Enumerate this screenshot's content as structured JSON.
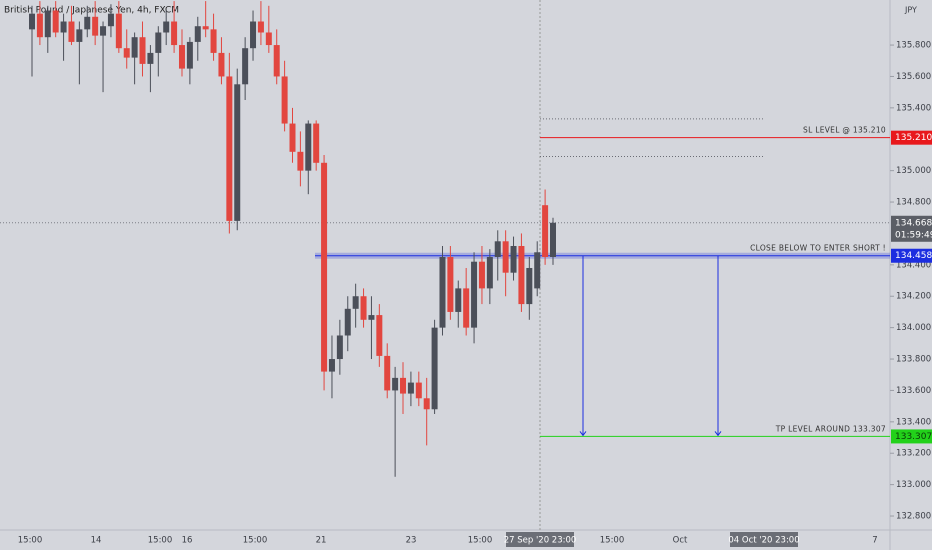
{
  "chart_data": {
    "type": "candlestick",
    "title": "British Pound / Japanese Yen, 4h, FXCM",
    "currency": "JPY",
    "up_color": "#4b4f59",
    "down_color": "#e2463f",
    "ylim": [
      132.711,
      136.087
    ],
    "yticks": [
      {
        "value": 132.8,
        "label": "132.800"
      },
      {
        "value": 133.0,
        "label": "133.000"
      },
      {
        "value": 133.2,
        "label": "133.200"
      },
      {
        "value": 133.4,
        "label": "133.400"
      },
      {
        "value": 133.6,
        "label": "133.600"
      },
      {
        "value": 133.8,
        "label": "133.800"
      },
      {
        "value": 134.0,
        "label": "134.000"
      },
      {
        "value": 134.2,
        "label": "134.200"
      },
      {
        "value": 134.4,
        "label": "134.400"
      },
      {
        "value": 134.8,
        "label": "134.800"
      },
      {
        "value": 135.0,
        "label": "135.000"
      },
      {
        "value": 135.4,
        "label": "135.400"
      },
      {
        "value": 135.6,
        "label": "135.600"
      },
      {
        "value": 135.8,
        "label": "135.800"
      }
    ],
    "xlabels": [
      "15:00",
      "14",
      "15:00",
      "16",
      "15:00",
      "21",
      "23",
      "15:00",
      "27 Sep '20 23:00",
      "15:00",
      "Oct",
      "04 Oct '20 23:00",
      "7"
    ],
    "ohlc": [
      [
        135.9,
        136.05,
        135.6,
        136.0
      ],
      [
        136.0,
        136.08,
        135.8,
        135.85
      ],
      [
        135.85,
        136.05,
        135.75,
        136.02
      ],
      [
        136.02,
        136.08,
        135.85,
        135.88
      ],
      [
        135.88,
        136.0,
        135.7,
        135.95
      ],
      [
        135.95,
        136.05,
        135.8,
        135.82
      ],
      [
        135.82,
        135.95,
        135.55,
        135.9
      ],
      [
        135.9,
        136.05,
        135.85,
        135.98
      ],
      [
        135.98,
        136.08,
        135.8,
        135.86
      ],
      [
        135.86,
        135.95,
        135.5,
        135.92
      ],
      [
        135.92,
        136.06,
        135.85,
        136.0
      ],
      [
        136.0,
        136.08,
        135.75,
        135.78
      ],
      [
        135.78,
        135.9,
        135.65,
        135.72
      ],
      [
        135.72,
        135.88,
        135.55,
        135.85
      ],
      [
        135.85,
        135.95,
        135.6,
        135.68
      ],
      [
        135.68,
        135.8,
        135.5,
        135.75
      ],
      [
        135.75,
        135.92,
        135.6,
        135.88
      ],
      [
        135.88,
        136.02,
        135.8,
        135.95
      ],
      [
        135.95,
        136.08,
        135.75,
        135.8
      ],
      [
        135.8,
        135.9,
        135.6,
        135.65
      ],
      [
        135.65,
        135.85,
        135.55,
        135.82
      ],
      [
        135.82,
        135.98,
        135.7,
        135.92
      ],
      [
        135.92,
        136.08,
        135.85,
        135.9
      ],
      [
        135.9,
        136.0,
        135.7,
        135.75
      ],
      [
        135.75,
        135.85,
        135.55,
        135.6
      ],
      [
        135.6,
        135.75,
        134.6,
        134.68
      ],
      [
        134.68,
        135.65,
        134.62,
        135.55
      ],
      [
        135.55,
        135.85,
        135.45,
        135.78
      ],
      [
        135.78,
        136.02,
        135.7,
        135.95
      ],
      [
        135.95,
        136.08,
        135.8,
        135.88
      ],
      [
        135.88,
        136.05,
        135.75,
        135.8
      ],
      [
        135.8,
        135.9,
        135.55,
        135.6
      ],
      [
        135.6,
        135.7,
        135.25,
        135.3
      ],
      [
        135.3,
        135.4,
        135.05,
        135.12
      ],
      [
        135.12,
        135.25,
        134.9,
        135.0
      ],
      [
        135.0,
        135.32,
        134.85,
        135.3
      ],
      [
        135.3,
        135.32,
        135.0,
        135.05
      ],
      [
        135.05,
        135.1,
        133.6,
        133.72
      ],
      [
        133.72,
        133.95,
        133.55,
        133.8
      ],
      [
        133.8,
        134.05,
        133.7,
        133.95
      ],
      [
        133.95,
        134.2,
        133.85,
        134.12
      ],
      [
        134.12,
        134.28,
        134.0,
        134.2
      ],
      [
        134.2,
        134.25,
        134.0,
        134.05
      ],
      [
        134.05,
        134.2,
        133.8,
        134.08
      ],
      [
        134.08,
        134.15,
        133.75,
        133.82
      ],
      [
        133.82,
        133.9,
        133.55,
        133.6
      ],
      [
        133.6,
        133.75,
        133.05,
        133.68
      ],
      [
        133.68,
        133.78,
        133.45,
        133.58
      ],
      [
        133.58,
        133.72,
        133.5,
        133.65
      ],
      [
        133.65,
        133.72,
        133.5,
        133.55
      ],
      [
        133.55,
        133.68,
        133.25,
        133.48
      ],
      [
        133.48,
        134.05,
        133.45,
        134.0
      ],
      [
        134.0,
        134.52,
        133.95,
        134.45
      ],
      [
        134.45,
        134.52,
        134.05,
        134.1
      ],
      [
        134.1,
        134.3,
        134.0,
        134.25
      ],
      [
        134.25,
        134.38,
        133.95,
        134.0
      ],
      [
        134.0,
        134.48,
        133.9,
        134.42
      ],
      [
        134.42,
        134.52,
        134.15,
        134.25
      ],
      [
        134.25,
        134.5,
        134.15,
        134.45
      ],
      [
        134.45,
        134.62,
        134.3,
        134.55
      ],
      [
        134.55,
        134.62,
        134.2,
        134.35
      ],
      [
        134.35,
        134.58,
        134.3,
        134.52
      ],
      [
        134.52,
        134.6,
        134.1,
        134.15
      ],
      [
        134.15,
        134.45,
        134.05,
        134.38
      ],
      [
        134.25,
        134.55,
        134.2,
        134.48
      ],
      [
        134.78,
        134.88,
        134.4,
        134.45
      ],
      [
        134.45,
        134.7,
        134.4,
        134.668
      ]
    ],
    "levels": [
      {
        "label": "SL LEVEL @ 135.210",
        "price": 135.21,
        "value_label": "135.210",
        "color": "#e8181c"
      },
      {
        "label": "CLOSE BELOW TO ENTER SHORT !",
        "price": 134.458,
        "value_label": "134.458",
        "color": "#1c2ee0"
      },
      {
        "label": "TP LEVEL AROUND 133.307",
        "price": 133.307,
        "value_label": "133.307",
        "color": "#22d11a"
      }
    ],
    "zone_bounds": [
      135.33,
      135.09
    ],
    "last_price": {
      "value": 134.668,
      "label": "134.668",
      "countdown": "01:59:49"
    }
  }
}
